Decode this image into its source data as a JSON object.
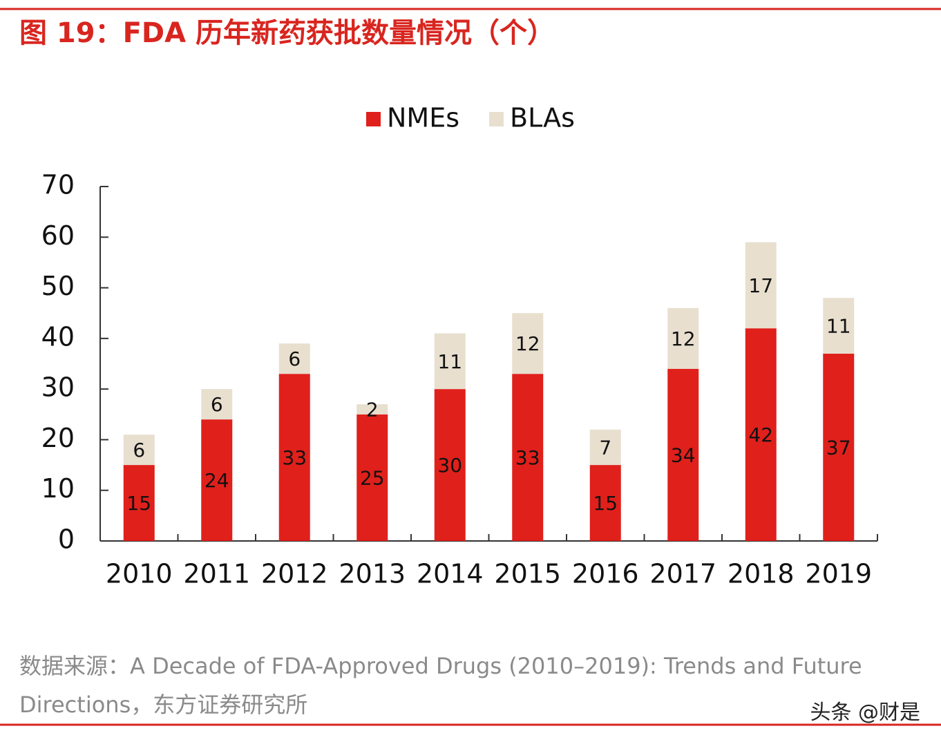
{
  "chart_data": {
    "type": "stacked_bar",
    "title": "图 19：FDA 历年新药获批数量情况（个）",
    "categories": [
      "2010",
      "2011",
      "2012",
      "2013",
      "2014",
      "2015",
      "2016",
      "2017",
      "2018",
      "2019"
    ],
    "series": [
      {
        "name": "NMEs",
        "color": "#e0201b",
        "values": [
          15,
          24,
          33,
          25,
          30,
          33,
          15,
          34,
          42,
          37
        ]
      },
      {
        "name": "BLAs",
        "color": "#e8dfcf",
        "values": [
          6,
          6,
          6,
          2,
          11,
          12,
          7,
          12,
          17,
          11
        ]
      }
    ],
    "ylim": [
      0,
      70
    ],
    "yticks": [
      0,
      10,
      20,
      30,
      40,
      50,
      60,
      70
    ],
    "legend": "top",
    "source": "数据来源：A Decade of FDA-Approved Drugs (2010–2019): Trends and Future Directions，东方证券研究所",
    "watermark": "头条 @财是"
  }
}
